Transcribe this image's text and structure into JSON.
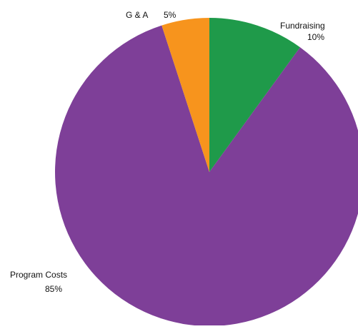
{
  "chart_data": {
    "type": "pie",
    "title": "",
    "slices": [
      {
        "label": "Fundraising",
        "value": 10,
        "value_label": "10%",
        "color": "#1f9a4a"
      },
      {
        "label": "Program Costs",
        "value": 85,
        "value_label": "85%",
        "color": "#7e3f98"
      },
      {
        "label": "G & A",
        "value": 5,
        "value_label": "5%",
        "color": "#f7941d"
      }
    ],
    "start_angle": "12 o'clock",
    "direction": "clockwise",
    "legend": "none"
  }
}
